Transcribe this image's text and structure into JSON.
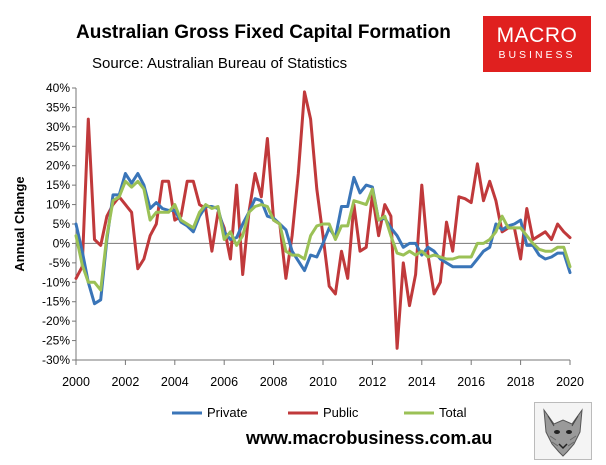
{
  "header": {
    "title": "Australian Gross Fixed Capital Formation",
    "subtitle": "Source: Australian Bureau of Statistics"
  },
  "logo": {
    "line1": "MACRO",
    "line2": "BUSINESS",
    "color": "#e0201f"
  },
  "footer": {
    "url": "www.macrobusiness.com.au"
  },
  "chart_data": {
    "type": "line",
    "title": "Australian Gross Fixed Capital Formation",
    "subtitle": "Source: Australian Bureau of Statistics",
    "xlabel": "",
    "ylabel": "Annual Change",
    "xlim": [
      2000,
      2020
    ],
    "ylim": [
      -30,
      40
    ],
    "x_ticks": [
      "2000",
      "2002",
      "2004",
      "2006",
      "2008",
      "2010",
      "2012",
      "2014",
      "2016",
      "2018",
      "2020"
    ],
    "y_ticks": [
      "-30%",
      "-25%",
      "-20%",
      "-15%",
      "-10%",
      "-5%",
      "0%",
      "5%",
      "10%",
      "15%",
      "20%",
      "25%",
      "30%",
      "35%",
      "40%"
    ],
    "grid": false,
    "legend_position": "bottom",
    "series": [
      {
        "name": "Private",
        "color": "#3a75b8",
        "points": [
          [
            2000.0,
            5
          ],
          [
            2000.25,
            -2
          ],
          [
            2000.5,
            -10
          ],
          [
            2000.75,
            -15.5
          ],
          [
            2001.0,
            -14.5
          ],
          [
            2001.25,
            1
          ],
          [
            2001.5,
            12.5
          ],
          [
            2001.75,
            12.5
          ],
          [
            2002.0,
            18
          ],
          [
            2002.25,
            15.5
          ],
          [
            2002.5,
            18
          ],
          [
            2002.75,
            15
          ],
          [
            2003.0,
            9
          ],
          [
            2003.25,
            10.5
          ],
          [
            2003.5,
            9
          ],
          [
            2003.75,
            8.5
          ],
          [
            2004.0,
            8.5
          ],
          [
            2004.25,
            5.5
          ],
          [
            2004.5,
            4.5
          ],
          [
            2004.75,
            3
          ],
          [
            2005.0,
            7
          ],
          [
            2005.25,
            9.5
          ],
          [
            2005.5,
            9.5
          ],
          [
            2005.75,
            9
          ],
          [
            2006.0,
            3
          ],
          [
            2006.25,
            1
          ],
          [
            2006.5,
            1.5
          ],
          [
            2006.75,
            5
          ],
          [
            2007.0,
            8
          ],
          [
            2007.25,
            11.5
          ],
          [
            2007.5,
            11
          ],
          [
            2007.75,
            7
          ],
          [
            2008.0,
            6.5
          ],
          [
            2008.25,
            5
          ],
          [
            2008.5,
            3.5
          ],
          [
            2008.75,
            -2
          ],
          [
            2009.0,
            -4.5
          ],
          [
            2009.25,
            -7
          ],
          [
            2009.5,
            -3
          ],
          [
            2009.75,
            -3.5
          ],
          [
            2010.0,
            0
          ],
          [
            2010.25,
            4
          ],
          [
            2010.5,
            1.5
          ],
          [
            2010.75,
            9.5
          ],
          [
            2011.0,
            9.5
          ],
          [
            2011.25,
            17
          ],
          [
            2011.5,
            13
          ],
          [
            2011.75,
            15
          ],
          [
            2012.0,
            14.5
          ],
          [
            2012.25,
            6
          ],
          [
            2012.5,
            6.5
          ],
          [
            2012.75,
            4
          ],
          [
            2013.0,
            2
          ],
          [
            2013.25,
            -1
          ],
          [
            2013.5,
            0
          ],
          [
            2013.75,
            0
          ],
          [
            2014.0,
            -3
          ],
          [
            2014.25,
            -1
          ],
          [
            2014.5,
            -2
          ],
          [
            2014.75,
            -4
          ],
          [
            2015.0,
            -5
          ],
          [
            2015.25,
            -6
          ],
          [
            2015.5,
            -6
          ],
          [
            2015.75,
            -6
          ],
          [
            2016.0,
            -6
          ],
          [
            2016.25,
            -4
          ],
          [
            2016.5,
            -2
          ],
          [
            2016.75,
            -1
          ],
          [
            2017.0,
            5
          ],
          [
            2017.25,
            3.5
          ],
          [
            2017.5,
            4.5
          ],
          [
            2017.75,
            5
          ],
          [
            2018.0,
            6
          ],
          [
            2018.25,
            -0.5
          ],
          [
            2018.5,
            -0.5
          ],
          [
            2018.75,
            -3
          ],
          [
            2019.0,
            -4
          ],
          [
            2019.25,
            -3.5
          ],
          [
            2019.5,
            -2.5
          ],
          [
            2019.75,
            -2.5
          ],
          [
            2020.0,
            -7.5
          ]
        ]
      },
      {
        "name": "Public",
        "color": "#c0393b",
        "points": [
          [
            2000.0,
            -9
          ],
          [
            2000.25,
            -6
          ],
          [
            2000.5,
            32
          ],
          [
            2000.75,
            1
          ],
          [
            2001.0,
            -0.5
          ],
          [
            2001.25,
            7
          ],
          [
            2001.5,
            10
          ],
          [
            2001.75,
            12
          ],
          [
            2002.0,
            10
          ],
          [
            2002.25,
            8
          ],
          [
            2002.5,
            -6.5
          ],
          [
            2002.75,
            -4
          ],
          [
            2003.0,
            2
          ],
          [
            2003.25,
            5
          ],
          [
            2003.5,
            16
          ],
          [
            2003.75,
            16
          ],
          [
            2004.0,
            6
          ],
          [
            2004.25,
            7
          ],
          [
            2004.5,
            16
          ],
          [
            2004.75,
            16
          ],
          [
            2005.0,
            10
          ],
          [
            2005.25,
            9
          ],
          [
            2005.5,
            -2
          ],
          [
            2005.75,
            8
          ],
          [
            2006.0,
            4
          ],
          [
            2006.25,
            -4
          ],
          [
            2006.5,
            15
          ],
          [
            2006.75,
            -8
          ],
          [
            2007.0,
            8
          ],
          [
            2007.25,
            18
          ],
          [
            2007.5,
            12
          ],
          [
            2007.75,
            27
          ],
          [
            2008.0,
            6
          ],
          [
            2008.25,
            5
          ],
          [
            2008.5,
            -9
          ],
          [
            2008.75,
            2
          ],
          [
            2009.0,
            18
          ],
          [
            2009.25,
            39
          ],
          [
            2009.5,
            32
          ],
          [
            2009.75,
            14
          ],
          [
            2010.0,
            2
          ],
          [
            2010.25,
            -11
          ],
          [
            2010.5,
            -13
          ],
          [
            2010.75,
            -2
          ],
          [
            2011.0,
            -9
          ],
          [
            2011.25,
            10
          ],
          [
            2011.5,
            -2
          ],
          [
            2011.75,
            -1
          ],
          [
            2012.0,
            12.5
          ],
          [
            2012.25,
            2
          ],
          [
            2012.5,
            10
          ],
          [
            2012.75,
            7
          ],
          [
            2013.0,
            -27
          ],
          [
            2013.25,
            -5
          ],
          [
            2013.5,
            -16
          ],
          [
            2013.75,
            -8
          ],
          [
            2014.0,
            15
          ],
          [
            2014.25,
            -3
          ],
          [
            2014.5,
            -13
          ],
          [
            2014.75,
            -10
          ],
          [
            2015.0,
            5.5
          ],
          [
            2015.25,
            -2
          ],
          [
            2015.5,
            12
          ],
          [
            2015.75,
            11.5
          ],
          [
            2016.0,
            10.5
          ],
          [
            2016.25,
            20.5
          ],
          [
            2016.5,
            11
          ],
          [
            2016.75,
            16
          ],
          [
            2017.0,
            11
          ],
          [
            2017.25,
            3
          ],
          [
            2017.5,
            4
          ],
          [
            2017.75,
            4
          ],
          [
            2018.0,
            -4
          ],
          [
            2018.25,
            9
          ],
          [
            2018.5,
            1
          ],
          [
            2018.75,
            2
          ],
          [
            2019.0,
            3
          ],
          [
            2019.25,
            1
          ],
          [
            2019.5,
            5
          ],
          [
            2019.75,
            3
          ],
          [
            2020.0,
            1.5
          ]
        ]
      },
      {
        "name": "Total",
        "color": "#9bc156",
        "points": [
          [
            2000.0,
            2
          ],
          [
            2000.25,
            -5.5
          ],
          [
            2000.5,
            -10
          ],
          [
            2000.75,
            -10
          ],
          [
            2001.0,
            -12
          ],
          [
            2001.25,
            2
          ],
          [
            2001.5,
            11
          ],
          [
            2001.75,
            12
          ],
          [
            2002.0,
            16
          ],
          [
            2002.25,
            14.5
          ],
          [
            2002.5,
            16
          ],
          [
            2002.75,
            14
          ],
          [
            2003.0,
            6
          ],
          [
            2003.25,
            8
          ],
          [
            2003.5,
            8
          ],
          [
            2003.75,
            8
          ],
          [
            2004.0,
            10
          ],
          [
            2004.25,
            6
          ],
          [
            2004.5,
            5
          ],
          [
            2004.75,
            4
          ],
          [
            2005.0,
            8
          ],
          [
            2005.25,
            10
          ],
          [
            2005.5,
            9
          ],
          [
            2005.75,
            9.5
          ],
          [
            2006.0,
            1
          ],
          [
            2006.25,
            3
          ],
          [
            2006.5,
            -0.5
          ],
          [
            2006.75,
            2
          ],
          [
            2007.0,
            8
          ],
          [
            2007.25,
            9.5
          ],
          [
            2007.5,
            10
          ],
          [
            2007.75,
            9.5
          ],
          [
            2008.0,
            6
          ],
          [
            2008.25,
            5
          ],
          [
            2008.5,
            -2
          ],
          [
            2008.75,
            -3
          ],
          [
            2009.0,
            -3
          ],
          [
            2009.25,
            -4
          ],
          [
            2009.5,
            2
          ],
          [
            2009.75,
            4.5
          ],
          [
            2010.0,
            5
          ],
          [
            2010.25,
            5
          ],
          [
            2010.5,
            1
          ],
          [
            2010.75,
            4.5
          ],
          [
            2011.0,
            4.5
          ],
          [
            2011.25,
            11
          ],
          [
            2011.5,
            10.5
          ],
          [
            2011.75,
            10
          ],
          [
            2012.0,
            14
          ],
          [
            2012.25,
            6
          ],
          [
            2012.5,
            7
          ],
          [
            2012.75,
            2
          ],
          [
            2013.0,
            -2.5
          ],
          [
            2013.25,
            -3
          ],
          [
            2013.5,
            -2
          ],
          [
            2013.75,
            -3
          ],
          [
            2014.0,
            -2
          ],
          [
            2014.25,
            -3.5
          ],
          [
            2014.5,
            -3
          ],
          [
            2014.75,
            -3.5
          ],
          [
            2015.0,
            -4
          ],
          [
            2015.25,
            -4
          ],
          [
            2015.5,
            -3.5
          ],
          [
            2015.75,
            -3.5
          ],
          [
            2016.0,
            -3.5
          ],
          [
            2016.25,
            0
          ],
          [
            2016.5,
            0
          ],
          [
            2016.75,
            1
          ],
          [
            2017.0,
            3
          ],
          [
            2017.25,
            7
          ],
          [
            2017.5,
            4
          ],
          [
            2017.75,
            4
          ],
          [
            2018.0,
            4
          ],
          [
            2018.25,
            2
          ],
          [
            2018.5,
            0
          ],
          [
            2018.75,
            -1.5
          ],
          [
            2019.0,
            -2
          ],
          [
            2019.25,
            -2
          ],
          [
            2019.5,
            -1
          ],
          [
            2019.75,
            -1
          ],
          [
            2020.0,
            -6
          ]
        ]
      }
    ]
  }
}
